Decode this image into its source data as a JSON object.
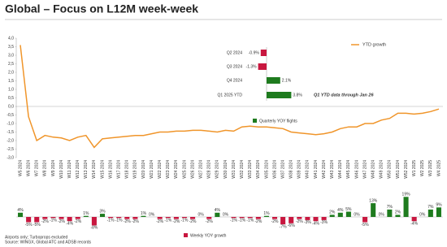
{
  "chart_data": [
    {
      "type": "line",
      "title": "Global – Focus on L12M week-week",
      "categories": [
        "W5 2024",
        "W6 2024",
        "W7 2024",
        "W8 2024",
        "W9 2024",
        "W10 2024",
        "W11 2024",
        "W12 2024",
        "W13 2024",
        "W14 2024",
        "W15 2024",
        "W16 2024",
        "W17 2024",
        "W18 2024",
        "W19 2024",
        "W20 2024",
        "W21 2024",
        "W22 2024",
        "W23 2024",
        "W24 2024",
        "W25 2024",
        "W26 2024",
        "W27 2024",
        "W28 2024",
        "W29 2024",
        "W30 2024",
        "W31 2024",
        "W32 2024",
        "W33 2024",
        "W34 2024",
        "W35 2024",
        "W36 2024",
        "W37 2024",
        "W38 2024",
        "W39 2024",
        "W40 2024",
        "W41 2024",
        "W42 2024",
        "W43 2024",
        "W44 2024",
        "W45 2024",
        "W46 2024",
        "W47 2024",
        "W48 2024",
        "W49 2024",
        "W50 2024",
        "W51 2024",
        "W52 2024",
        "W1 2025",
        "W2 2025",
        "W3 2025",
        "W4 2025"
      ],
      "series": [
        {
          "name": "YTD growth",
          "color": "#f0952a",
          "values": [
            3.6,
            -0.6,
            -2.0,
            -1.7,
            -1.8,
            -1.85,
            -2.0,
            -1.8,
            -1.7,
            -2.4,
            -1.9,
            -1.85,
            -1.8,
            -1.75,
            -1.7,
            -1.7,
            -1.6,
            -1.5,
            -1.5,
            -1.45,
            -1.45,
            -1.4,
            -1.4,
            -1.45,
            -1.5,
            -1.4,
            -1.45,
            -1.2,
            -1.15,
            -1.2,
            -1.2,
            -1.25,
            -1.3,
            -1.5,
            -1.55,
            -1.6,
            -1.65,
            -1.6,
            -1.5,
            -1.3,
            -1.2,
            -1.2,
            -1.0,
            -1.0,
            -0.8,
            -0.7,
            -0.4,
            -0.4,
            -0.45,
            -0.4,
            -0.3,
            -0.15
          ]
        }
      ],
      "ylim": [
        -3.0,
        4.0
      ],
      "yticks": [
        {
          "value": 4.0,
          "label": "4,0"
        },
        {
          "value": 3.5,
          "label": "3,5"
        },
        {
          "value": 3.0,
          "label": "3,0"
        },
        {
          "value": 2.5,
          "label": "2,5"
        },
        {
          "value": 2.0,
          "label": "2,0"
        },
        {
          "value": 1.5,
          "label": "1,5"
        },
        {
          "value": 1.0,
          "label": "1,0"
        },
        {
          "value": 0.5,
          "label": "0,5"
        },
        {
          "value": 0.0,
          "label": "0,0"
        },
        {
          "value": -0.5,
          "label": "-0,5"
        },
        {
          "value": -1.0,
          "label": "-1,0"
        },
        {
          "value": -1.5,
          "label": "-1,5"
        },
        {
          "value": -2.0,
          "label": "-2,0"
        },
        {
          "value": -2.5,
          "label": "-2,5"
        },
        {
          "value": -3.0,
          "label": "-3,0"
        }
      ],
      "legend": "upper right"
    },
    {
      "type": "hbar",
      "categories": [
        "Q2 2024",
        "Q3 2024",
        "Q4 2024",
        "Q1 2025 YTD"
      ],
      "series": [
        {
          "name": "Quarterly YOY flights",
          "color": "#1e7b1e",
          "values": [
            -0.9,
            -1.3,
            2.1,
            3.8
          ],
          "value_labels": [
            "-0.9%",
            "-1.3%",
            "2.1%",
            "3.8%"
          ]
        }
      ],
      "negative_color": "#c8173f",
      "annotation": "Q1 YTD data through Jan 26"
    },
    {
      "type": "bar",
      "series": [
        {
          "name": "Weekly YOY growth",
          "color": "#1e7b1e",
          "values": [
            4,
            -5,
            -5,
            -2,
            -1,
            -2,
            -4,
            -2,
            1,
            -8,
            3,
            -1,
            -1,
            -2,
            -2,
            1,
            0,
            -2,
            -1,
            -2,
            -1,
            -2,
            0,
            -2,
            4,
            0,
            -1,
            -1,
            -1,
            -2,
            1,
            -2,
            -7,
            -6,
            -2,
            -3,
            -4,
            -3,
            2,
            4,
            5,
            0,
            -5,
            13,
            0,
            7,
            2,
            19,
            -4,
            0,
            7,
            9
          ],
          "value_labels": [
            "4%",
            "-5%",
            "-5%",
            "-2%",
            "-1%",
            "-2%",
            "-4%",
            "-2%",
            "1%",
            "-8%",
            "3%",
            "-1%",
            "-1%",
            "-2%",
            "-2%",
            "1%",
            "0%",
            "-2%",
            "-1%",
            "-2%",
            "-1%",
            "-2%",
            "0%",
            "-2%",
            "4%",
            "0%",
            "-1%",
            "-1%",
            "-1%",
            "-2%",
            "1%",
            "-2%",
            "-7%",
            "-6%",
            "-2%",
            "-3%",
            "-4%",
            "-3%",
            "2%",
            "4%",
            "5%",
            "0%",
            "-5%",
            "13%",
            "0%",
            "7%",
            "2%",
            "19%",
            "-4%",
            "0%",
            "7%",
            "9%"
          ]
        }
      ],
      "negative_color": "#c8173f",
      "footnotes": [
        "Airports only; Turboprops excluded",
        "Source: WINGX, Global ATC and ADSB records"
      ]
    }
  ]
}
